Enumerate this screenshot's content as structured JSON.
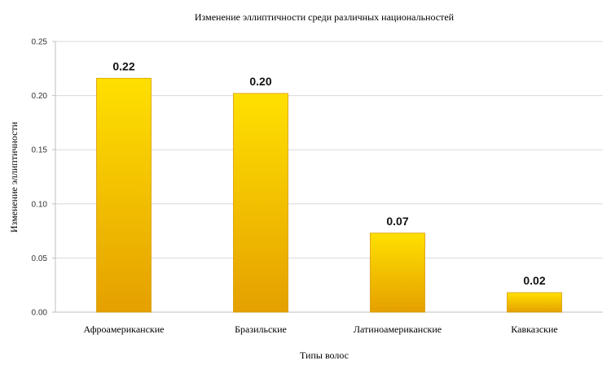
{
  "chart_data": {
    "type": "bar",
    "title": "Изменение эллиптичности среди различных национальностей",
    "xlabel": "Типы волос",
    "ylabel": "Изменение эллиптичности",
    "categories": [
      "Афроамериканские",
      "Бразильские",
      "Латиноамериканские",
      "Кавказские"
    ],
    "values": [
      0.216,
      0.202,
      0.073,
      0.018
    ],
    "data_labels": [
      "0.22",
      "0.20",
      "0.07",
      "0.02"
    ],
    "ylim": [
      0,
      0.25
    ],
    "yticks": [
      "0.00",
      "0.05",
      "0.10",
      "0.15",
      "0.20",
      "0.25"
    ],
    "grid": true,
    "legend": "none",
    "colors": {
      "bar_top": "#FFE000",
      "bar_bottom": "#E5A000",
      "bar_edge": "#D99A00"
    }
  }
}
